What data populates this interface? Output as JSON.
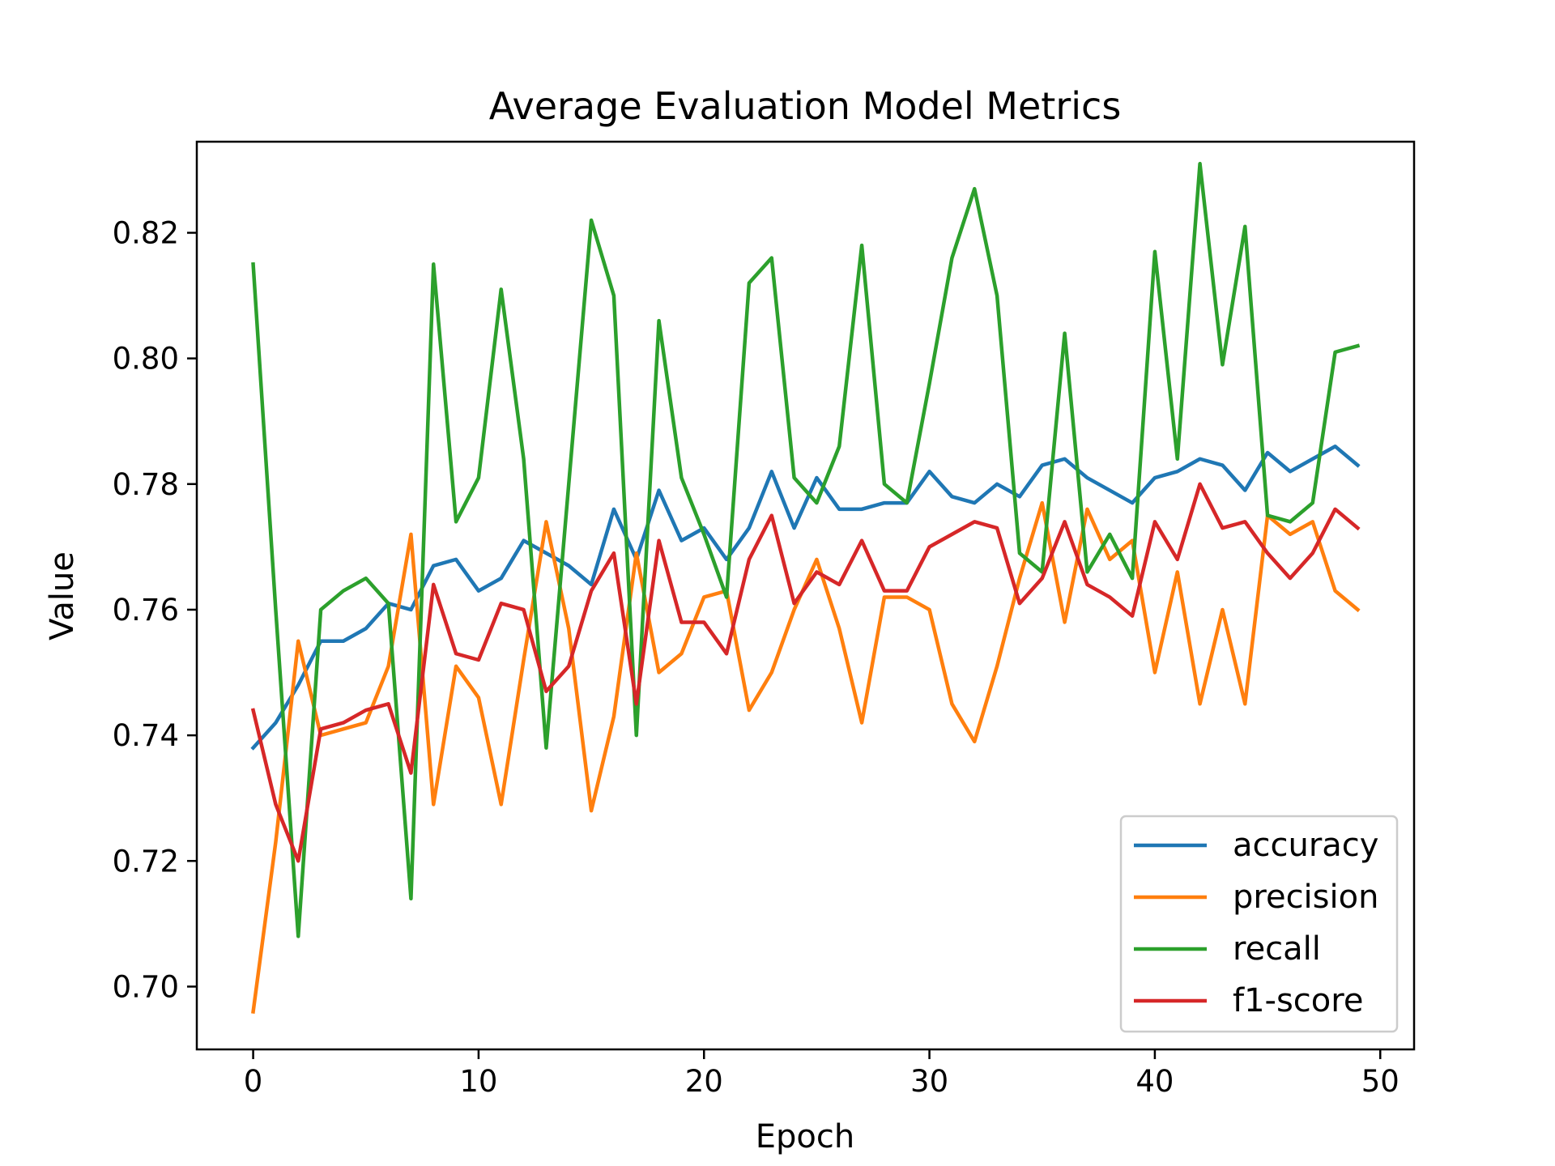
{
  "chart_data": {
    "type": "line",
    "title": "Average Evaluation Model Metrics",
    "xlabel": "Epoch",
    "ylabel": "Value",
    "xlim": [
      -2.5,
      51.5
    ],
    "ylim": [
      0.69,
      0.8345
    ],
    "xticks": [
      0,
      10,
      20,
      30,
      40,
      50
    ],
    "yticks": [
      0.7,
      0.72,
      0.74,
      0.76,
      0.78,
      0.8,
      0.82
    ],
    "grid": false,
    "legend": "lower-right",
    "x": [
      0,
      1,
      2,
      3,
      4,
      5,
      6,
      7,
      8,
      9,
      10,
      11,
      12,
      13,
      14,
      15,
      16,
      17,
      18,
      19,
      20,
      21,
      22,
      23,
      24,
      25,
      26,
      27,
      28,
      29,
      30,
      31,
      32,
      33,
      34,
      35,
      36,
      37,
      38,
      39,
      40,
      41,
      42,
      43,
      44,
      45,
      46,
      47,
      48,
      49
    ],
    "series": [
      {
        "name": "accuracy",
        "color": "#1f77b4",
        "values": [
          0.738,
          0.742,
          0.748,
          0.755,
          0.755,
          0.757,
          0.761,
          0.76,
          0.767,
          0.768,
          0.763,
          0.765,
          0.771,
          0.769,
          0.767,
          0.764,
          0.776,
          0.768,
          0.779,
          0.771,
          0.773,
          0.768,
          0.773,
          0.782,
          0.773,
          0.781,
          0.776,
          0.776,
          0.777,
          0.777,
          0.782,
          0.778,
          0.777,
          0.78,
          0.778,
          0.783,
          0.784,
          0.781,
          0.779,
          0.777,
          0.781,
          0.782,
          0.784,
          0.783,
          0.779,
          0.785,
          0.782,
          0.784,
          0.786,
          0.783
        ]
      },
      {
        "name": "precision",
        "color": "#ff7f0e",
        "values": [
          0.696,
          0.723,
          0.755,
          0.74,
          0.741,
          0.742,
          0.751,
          0.772,
          0.729,
          0.751,
          0.746,
          0.729,
          0.752,
          0.774,
          0.757,
          0.728,
          0.743,
          0.769,
          0.75,
          0.753,
          0.762,
          0.763,
          0.744,
          0.75,
          0.76,
          0.768,
          0.757,
          0.742,
          0.762,
          0.762,
          0.76,
          0.745,
          0.739,
          0.751,
          0.765,
          0.777,
          0.758,
          0.776,
          0.768,
          0.771,
          0.75,
          0.766,
          0.745,
          0.76,
          0.745,
          0.775,
          0.772,
          0.774,
          0.763,
          0.76
        ]
      },
      {
        "name": "recall",
        "color": "#2ca02c",
        "values": [
          0.815,
          0.76,
          0.708,
          0.76,
          0.763,
          0.765,
          0.761,
          0.714,
          0.815,
          0.774,
          0.781,
          0.811,
          0.784,
          0.738,
          0.78,
          0.822,
          0.81,
          0.74,
          0.806,
          0.781,
          0.772,
          0.762,
          0.812,
          0.816,
          0.781,
          0.777,
          0.786,
          0.818,
          0.78,
          0.777,
          0.796,
          0.816,
          0.827,
          0.81,
          0.769,
          0.766,
          0.804,
          0.766,
          0.772,
          0.765,
          0.817,
          0.784,
          0.831,
          0.799,
          0.821,
          0.775,
          0.774,
          0.777,
          0.801,
          0.802
        ]
      },
      {
        "name": "f1-score",
        "color": "#d62728",
        "values": [
          0.744,
          0.729,
          0.72,
          0.741,
          0.742,
          0.744,
          0.745,
          0.734,
          0.764,
          0.753,
          0.752,
          0.761,
          0.76,
          0.747,
          0.751,
          0.763,
          0.769,
          0.745,
          0.771,
          0.758,
          0.758,
          0.753,
          0.768,
          0.775,
          0.761,
          0.766,
          0.764,
          0.771,
          0.763,
          0.763,
          0.77,
          0.772,
          0.774,
          0.773,
          0.761,
          0.765,
          0.774,
          0.764,
          0.762,
          0.759,
          0.774,
          0.768,
          0.78,
          0.773,
          0.774,
          0.769,
          0.765,
          0.769,
          0.776,
          0.773
        ]
      }
    ]
  }
}
